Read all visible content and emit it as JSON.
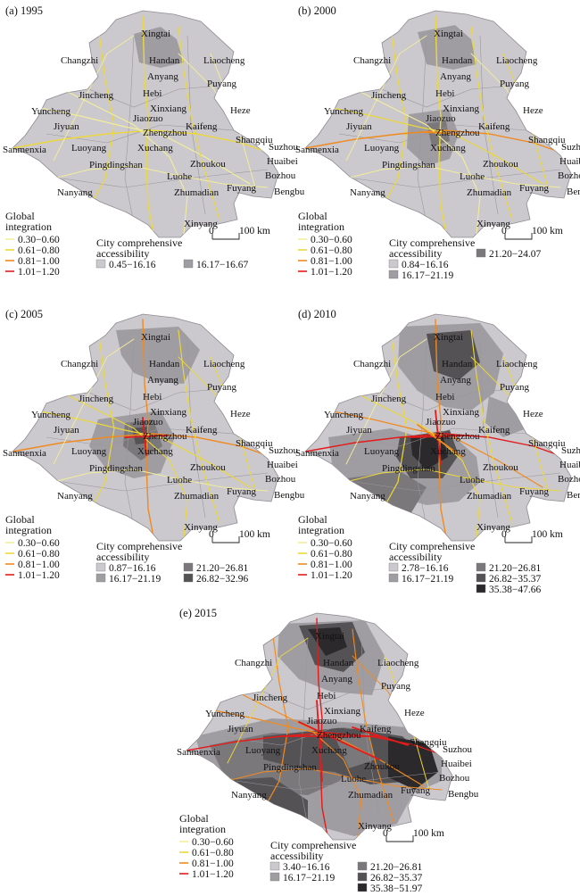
{
  "panels": [
    {
      "title": "(a) 1995",
      "legend_title": "Global integration",
      "integration_classes": [
        "0.30−0.60",
        "0.61−0.80",
        "0.81−1.00",
        "1.01−1.20"
      ],
      "accessibility_title": "City comprehensive accessibility",
      "accessibility_classes": [
        "0.45−16.16",
        "16.17−16.67"
      ],
      "scale_label": "100 km",
      "scale_zero": "0"
    },
    {
      "title": "(b) 2000",
      "legend_title": "Global integration",
      "integration_classes": [
        "0.30−0.60",
        "0.61−0.80",
        "0.81−1.00",
        "1.01−1.20"
      ],
      "accessibility_title": "City comprehensive accessibility",
      "accessibility_classes": [
        "0.84−16.16",
        "16.17−21.19",
        "21.20−24.07"
      ],
      "scale_label": "100 km",
      "scale_zero": "0"
    },
    {
      "title": "(c) 2005",
      "legend_title": "Global integration",
      "integration_classes": [
        "0.30−0.60",
        "0.61−0.80",
        "0.81−1.00",
        "1.01−1.20"
      ],
      "accessibility_title": "City comprehensive accessibility",
      "accessibility_classes": [
        "0.87−16.16",
        "16.17−21.19",
        "21.20−26.81",
        "26.82−32.96"
      ],
      "scale_label": "100 km",
      "scale_zero": "0"
    },
    {
      "title": "(d) 2010",
      "legend_title": "Global integration",
      "integration_classes": [
        "0.30−0.60",
        "0.61−0.80",
        "0.81−1.00",
        "1.01−1.20"
      ],
      "accessibility_title": "City comprehensive accessibility",
      "accessibility_classes": [
        "2.78−16.16",
        "16.17−21.19",
        "21.20−26.81",
        "26.82−35.37",
        "35.38−47.66"
      ],
      "scale_label": "100 km",
      "scale_zero": "0"
    },
    {
      "title": "(e) 2015",
      "legend_title": "Global integration",
      "integration_classes": [
        "0.30−0.60",
        "0.61−0.80",
        "0.81−1.00",
        "1.01−1.20"
      ],
      "accessibility_title": "City comprehensive accessibility",
      "accessibility_classes": [
        "3.40−16.16",
        "16.17−21.19",
        "21.20−26.81",
        "26.82−35.37",
        "35.38−51.97"
      ],
      "scale_label": "100 km",
      "scale_zero": "0"
    }
  ],
  "cities": [
    "Xingtai",
    "Changzhi",
    "Handan",
    "Liaocheng",
    "Anyang",
    "Puyang",
    "Jincheng",
    "Hebi",
    "Yuncheng",
    "Xinxiang",
    "Heze",
    "Jiyuan",
    "Jiaozuo",
    "Kaifeng",
    "Zhengzhou",
    "Sanmenxia",
    "Shangqiu",
    "Suzhou",
    "Luoyang",
    "Xuchang",
    "Huaibei",
    "Pingdingshan",
    "Zhoukou",
    "Bozhou",
    "Luohe",
    "Bengbu",
    "Nanyang",
    "Zhumadian",
    "Fuyang",
    "Xinyang"
  ],
  "colors": {
    "integration": [
      "#f2ee9a",
      "#ecd83a",
      "#f08a1e",
      "#e21b1b"
    ],
    "accessibility": [
      "#cbc8ce",
      "#a09da2",
      "#7b787c",
      "#555256",
      "#2b292c"
    ],
    "background": "#cbc8ce"
  }
}
